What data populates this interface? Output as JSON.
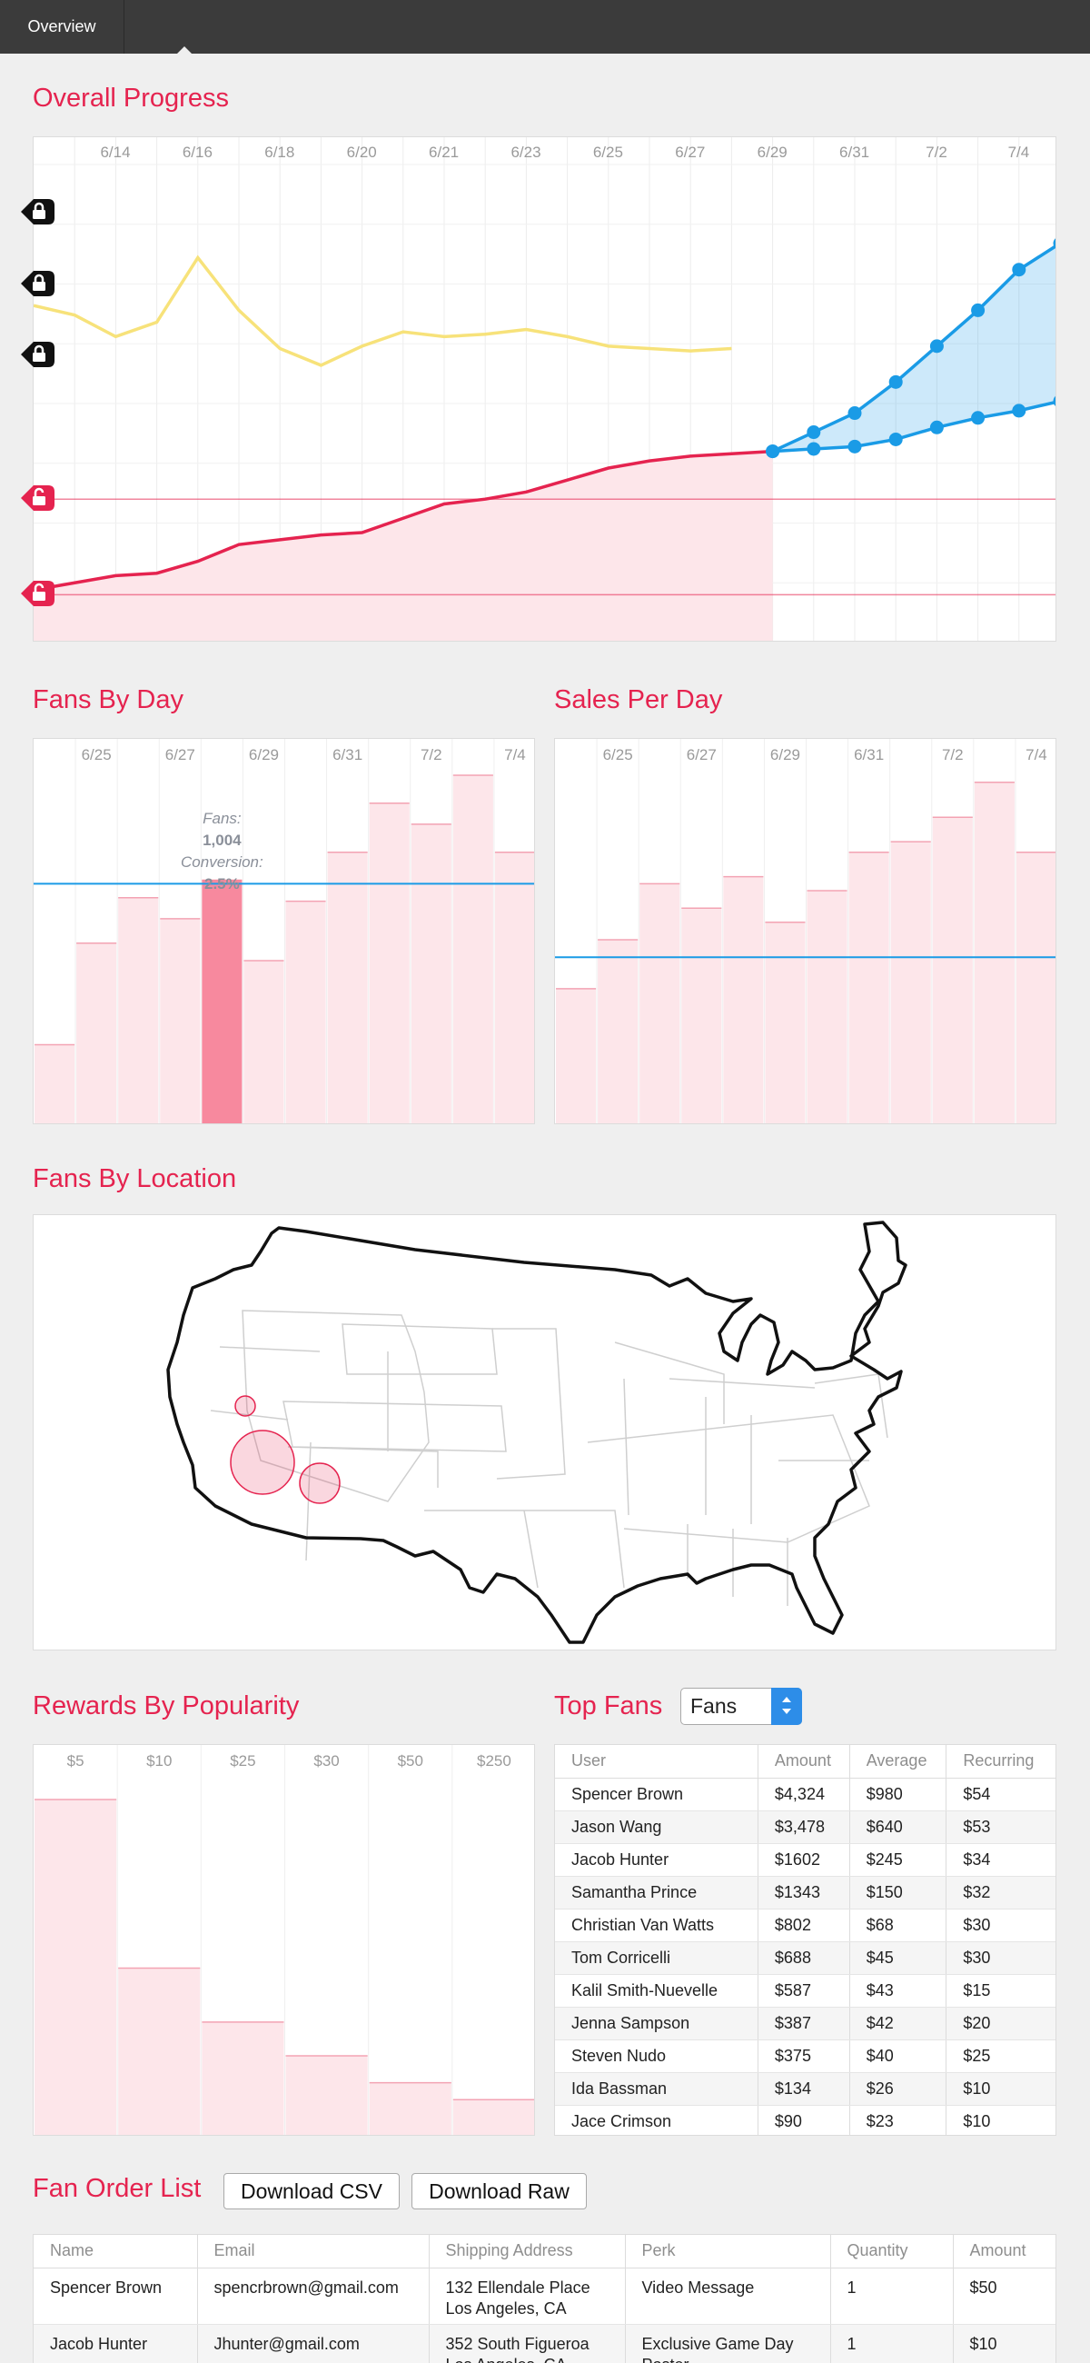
{
  "nav": {
    "tab_label": "Overview"
  },
  "headings": {
    "overall": "Overall Progress",
    "fans_by_day": "Fans By Day",
    "sales_per_day": "Sales Per Day",
    "location": "Fans By Location",
    "rewards": "Rewards By Popularity",
    "top_fans": "Top Fans",
    "order_list": "Fan Order List"
  },
  "colors": {
    "accent": "#e5234f",
    "projection": "#1a9be6",
    "baseline": "#f7e27a",
    "bar_fill": "#fde6ea",
    "bar_highlight": "#f7899e"
  },
  "top_fans_select": {
    "value": "Fans"
  },
  "buttons": {
    "download_csv": "Download CSV",
    "download_raw": "Download Raw"
  },
  "tooltip": {
    "fans_label": "Fans:",
    "fans_value": "1,004",
    "conversion_label": "Conversion:",
    "conversion_value": "2.5%"
  },
  "chart_data": [
    {
      "id": "overall",
      "type": "line",
      "x_ticks": [
        "6/14",
        "6/16",
        "6/18",
        "6/20",
        "6/21",
        "6/23",
        "6/25",
        "6/27",
        "6/29",
        "6/31",
        "7/2",
        "7/4"
      ],
      "ylim": [
        0,
        100
      ],
      "goal_markers": [
        {
          "value": 90,
          "locked": true
        },
        {
          "value": 75,
          "locked": true
        },
        {
          "value": 60,
          "locked": true
        },
        {
          "value": 30,
          "locked": false
        },
        {
          "value": 10,
          "locked": false
        }
      ],
      "series": [
        {
          "role": "previous-campaign",
          "values": [
            70.5,
            68.5,
            64.0,
            67.0,
            80.5,
            69.5,
            61.5,
            58.0,
            62.0,
            65.0,
            64.0,
            64.5,
            65.5,
            64.0,
            62.0,
            61.5,
            61.0,
            61.5
          ]
        },
        {
          "role": "progress",
          "values": [
            11.0,
            12.5,
            14.0,
            14.5,
            17.0,
            20.5,
            21.5,
            22.5,
            23.0,
            26.0,
            29.0,
            30.0,
            31.5,
            34.0,
            36.5,
            38.0,
            39.0,
            39.5,
            40.0
          ]
        },
        {
          "role": "projection-high",
          "values": [
            40.0,
            44.0,
            48.0,
            54.5,
            62.0,
            69.5,
            78.0,
            83.5,
            89.0
          ]
        },
        {
          "role": "projection-low",
          "values": [
            40.0,
            40.5,
            41.0,
            42.5,
            45.0,
            47.0,
            48.5,
            50.5,
            55.0
          ]
        }
      ]
    },
    {
      "id": "fans_by_day",
      "type": "bar",
      "x_ticks": [
        "6/25",
        "6/27",
        "6/29",
        "6/31",
        "7/2",
        "7/4"
      ],
      "ylim": [
        0,
        100
      ],
      "values": [
        23,
        52,
        65,
        59,
        70,
        47,
        64,
        78,
        92,
        86,
        100,
        78
      ],
      "highlight_index": 4,
      "reference_value": 69
    },
    {
      "id": "sales_per_day",
      "type": "bar",
      "x_ticks": [
        "6/25",
        "6/27",
        "6/29",
        "6/31",
        "7/2",
        "7/4"
      ],
      "ylim": [
        0,
        100
      ],
      "values": [
        39,
        53,
        69,
        62,
        71,
        58,
        67,
        78,
        81,
        88,
        98,
        78
      ],
      "reference_value": 48
    },
    {
      "id": "rewards",
      "type": "bar",
      "categories": [
        "$5",
        "$10",
        "$25",
        "$30",
        "$50",
        "$250"
      ],
      "ylim": [
        0,
        100
      ],
      "values": [
        100,
        50,
        34,
        24,
        16,
        11
      ]
    },
    {
      "id": "location",
      "type": "bubble-map",
      "bubbles": [
        {
          "place": "San Francisco",
          "size": 3
        },
        {
          "place": "Los Angeles",
          "size": 10
        },
        {
          "place": "San Diego",
          "size": 5
        }
      ]
    }
  ],
  "top_fans_table": {
    "columns": [
      "User",
      "Amount",
      "Average",
      "Recurring"
    ],
    "rows": [
      [
        "Spencer Brown",
        "$4,324",
        "$980",
        "$54"
      ],
      [
        "Jason Wang",
        "$3,478",
        "$640",
        "$53"
      ],
      [
        "Jacob Hunter",
        "$1602",
        "$245",
        "$34"
      ],
      [
        "Samantha Prince",
        "$1343",
        "$150",
        "$32"
      ],
      [
        "Christian Van Watts",
        "$802",
        "$68",
        "$30"
      ],
      [
        "Tom Corricelli",
        "$688",
        "$45",
        "$30"
      ],
      [
        "Kalil Smith-Nuevelle",
        "$587",
        "$43",
        "$15"
      ],
      [
        "Jenna Sampson",
        "$387",
        "$42",
        "$20"
      ],
      [
        "Steven Nudo",
        "$375",
        "$40",
        "$25"
      ],
      [
        "Ida Bassman",
        "$134",
        "$26",
        "$10"
      ],
      [
        "Jace Crimson",
        "$90",
        "$23",
        "$10"
      ]
    ]
  },
  "orders_table": {
    "columns": [
      "Name",
      "Email",
      "Shipping Address",
      "Perk",
      "Quantity",
      "Amount"
    ],
    "rows": [
      [
        "Spencer Brown",
        "spencrbrown@gmail.com",
        [
          "132 Ellendale Place",
          "Los Angeles, CA"
        ],
        [
          "Video Message"
        ],
        "1",
        "$50"
      ],
      [
        "Jacob Hunter",
        "Jhunter@gmail.com",
        [
          "352 South Figueroa",
          "Los Angeles, CA"
        ],
        [
          "Exclusive Game Day",
          "Poster"
        ],
        "1",
        "$10"
      ]
    ]
  }
}
